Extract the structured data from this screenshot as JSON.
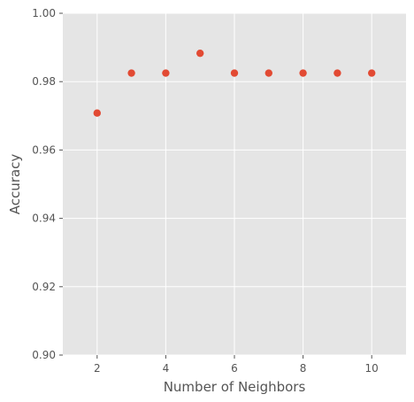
{
  "chart_data": {
    "type": "scatter",
    "title": "",
    "xlabel": "Number of Neighbors",
    "ylabel": "Accuracy",
    "xlim": [
      1.0,
      11.0
    ],
    "ylim": [
      0.9,
      1.0
    ],
    "x_ticks": [
      2,
      4,
      6,
      8,
      10
    ],
    "x_tick_labels": [
      "2",
      "4",
      "6",
      "8",
      "10"
    ],
    "y_ticks": [
      0.9,
      0.92,
      0.94,
      0.96,
      0.98,
      1.0
    ],
    "y_tick_labels": [
      "0.90",
      "0.92",
      "0.94",
      "0.96",
      "0.98",
      "1.00"
    ],
    "grid": true,
    "style": "ggplot",
    "colors": {
      "background": "#e5e5e5",
      "grid": "#ffffff",
      "marker": "#e24a33",
      "text": "#555555"
    },
    "series": [
      {
        "x": [
          2,
          3,
          4,
          5,
          6,
          7,
          8,
          9,
          10
        ],
        "y": [
          0.9708,
          0.9825,
          0.9825,
          0.9883,
          0.9825,
          0.9825,
          0.9825,
          0.9825,
          0.9825
        ]
      }
    ]
  }
}
